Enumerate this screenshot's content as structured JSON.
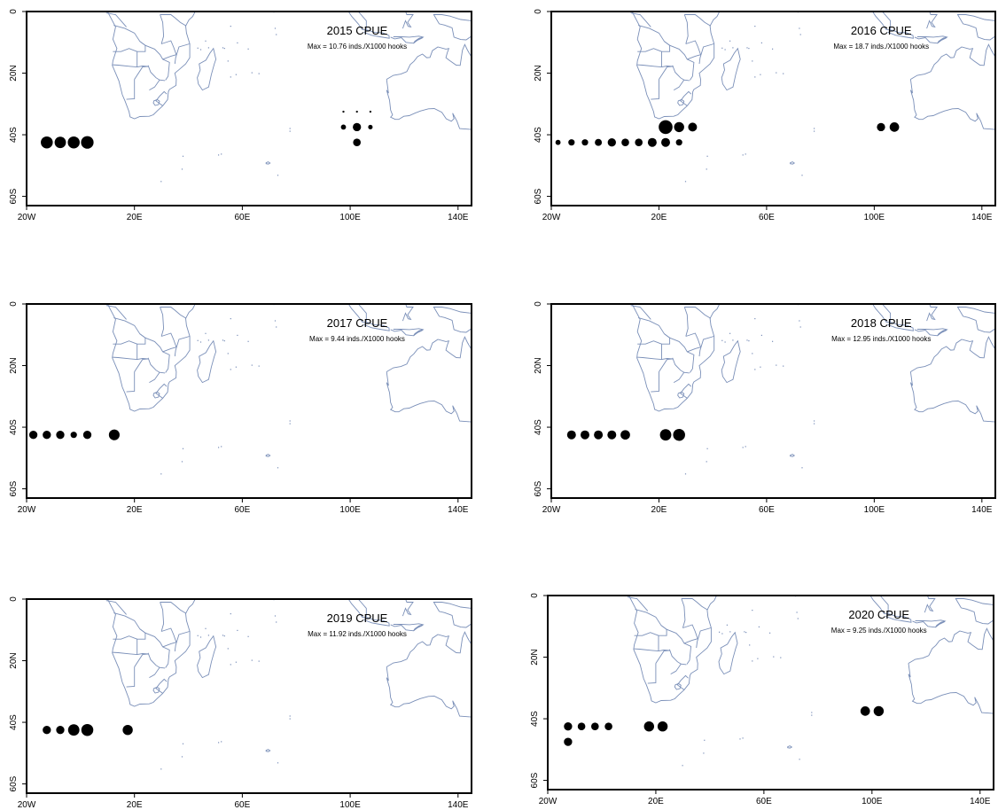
{
  "axes": {
    "x_ticks": [
      "20W",
      "20E",
      "60E",
      "100E",
      "140E"
    ],
    "y_ticks": [
      "0",
      "20N",
      "40S",
      "60S"
    ]
  },
  "colors": {
    "coast": "#7a8fb8",
    "dots": "#000000",
    "frame": "#000000"
  },
  "maps": [
    {
      "title": "2015 CPUE",
      "max_label": "Max =  10.76 inds./X1000 hooks",
      "points": [
        {
          "lon": -12.5,
          "lat": -42.5,
          "size": 0.85
        },
        {
          "lon": -7.5,
          "lat": -42.5,
          "size": 0.8
        },
        {
          "lon": -2.5,
          "lat": -42.5,
          "size": 0.85
        },
        {
          "lon": 2.5,
          "lat": -42.5,
          "size": 0.9
        },
        {
          "lon": 97.5,
          "lat": -37.5,
          "size": 0.3
        },
        {
          "lon": 102.5,
          "lat": -37.5,
          "size": 0.55
        },
        {
          "lon": 107.5,
          "lat": -37.5,
          "size": 0.25
        },
        {
          "lon": 102.5,
          "lat": -42.5,
          "size": 0.5
        },
        {
          "lon": 97.5,
          "lat": -32.5,
          "size": 0.05
        },
        {
          "lon": 102.5,
          "lat": -32.5,
          "size": 0.05
        },
        {
          "lon": 107.5,
          "lat": -32.5,
          "size": 0.05
        }
      ]
    },
    {
      "title": "2016 CPUE",
      "max_label": "Max =  18.7 inds./X1000 hooks",
      "points": [
        {
          "lon": -17.5,
          "lat": -42.5,
          "size": 0.3
        },
        {
          "lon": -12.5,
          "lat": -42.5,
          "size": 0.4
        },
        {
          "lon": -7.5,
          "lat": -42.5,
          "size": 0.4
        },
        {
          "lon": -2.5,
          "lat": -42.5,
          "size": 0.45
        },
        {
          "lon": 2.5,
          "lat": -42.5,
          "size": 0.55
        },
        {
          "lon": 7.5,
          "lat": -42.5,
          "size": 0.5
        },
        {
          "lon": 12.5,
          "lat": -42.5,
          "size": 0.5
        },
        {
          "lon": 17.5,
          "lat": -42.5,
          "size": 0.6
        },
        {
          "lon": 22.5,
          "lat": -42.5,
          "size": 0.6
        },
        {
          "lon": 27.5,
          "lat": -42.5,
          "size": 0.4
        },
        {
          "lon": 22.5,
          "lat": -37.5,
          "size": 1.0
        },
        {
          "lon": 27.5,
          "lat": -37.5,
          "size": 0.7
        },
        {
          "lon": 32.5,
          "lat": -37.5,
          "size": 0.6
        },
        {
          "lon": 102.5,
          "lat": -37.5,
          "size": 0.55
        },
        {
          "lon": 107.5,
          "lat": -37.5,
          "size": 0.65
        }
      ]
    },
    {
      "title": "2017 CPUE",
      "max_label": "Max =  9.44 inds./X1000 hooks",
      "points": [
        {
          "lon": -22.5,
          "lat": -42.5,
          "size": 0.55
        },
        {
          "lon": -17.5,
          "lat": -42.5,
          "size": 0.55
        },
        {
          "lon": -12.5,
          "lat": -42.5,
          "size": 0.55
        },
        {
          "lon": -7.5,
          "lat": -42.5,
          "size": 0.55
        },
        {
          "lon": -2.5,
          "lat": -42.5,
          "size": 0.4
        },
        {
          "lon": 2.5,
          "lat": -42.5,
          "size": 0.55
        },
        {
          "lon": 12.5,
          "lat": -42.5,
          "size": 0.75
        }
      ]
    },
    {
      "title": "2018 CPUE",
      "max_label": "Max =  12.95 inds./X1000 hooks",
      "points": [
        {
          "lon": -12.5,
          "lat": -42.5,
          "size": 0.6
        },
        {
          "lon": -7.5,
          "lat": -42.5,
          "size": 0.6
        },
        {
          "lon": -2.5,
          "lat": -42.5,
          "size": 0.6
        },
        {
          "lon": 2.5,
          "lat": -42.5,
          "size": 0.6
        },
        {
          "lon": 7.5,
          "lat": -42.5,
          "size": 0.65
        },
        {
          "lon": 22.5,
          "lat": -42.5,
          "size": 0.8
        },
        {
          "lon": 27.5,
          "lat": -42.5,
          "size": 0.85
        }
      ]
    },
    {
      "title": "2019 CPUE",
      "max_label": "Max =  11.92 inds./X1000 hooks",
      "points": [
        {
          "lon": -12.5,
          "lat": -42.5,
          "size": 0.55
        },
        {
          "lon": -7.5,
          "lat": -42.5,
          "size": 0.55
        },
        {
          "lon": -2.5,
          "lat": -42.5,
          "size": 0.8
        },
        {
          "lon": 2.5,
          "lat": -42.5,
          "size": 0.85
        },
        {
          "lon": 17.5,
          "lat": -42.5,
          "size": 0.7
        }
      ]
    },
    {
      "title": "2020 CPUE",
      "max_label": "Max =  9.25 inds./X1000 hooks",
      "points": [
        {
          "lon": -12.5,
          "lat": -42.5,
          "size": 0.55
        },
        {
          "lon": -7.5,
          "lat": -42.5,
          "size": 0.5
        },
        {
          "lon": -2.5,
          "lat": -42.5,
          "size": 0.5
        },
        {
          "lon": 2.5,
          "lat": -42.5,
          "size": 0.5
        },
        {
          "lon": 17.5,
          "lat": -42.5,
          "size": 0.7
        },
        {
          "lon": 22.5,
          "lat": -42.5,
          "size": 0.7
        },
        {
          "lon": -12.5,
          "lat": -47.5,
          "size": 0.55
        },
        {
          "lon": 97.5,
          "lat": -37.5,
          "size": 0.65
        },
        {
          "lon": 102.5,
          "lat": -37.5,
          "size": 0.7
        }
      ]
    }
  ]
}
